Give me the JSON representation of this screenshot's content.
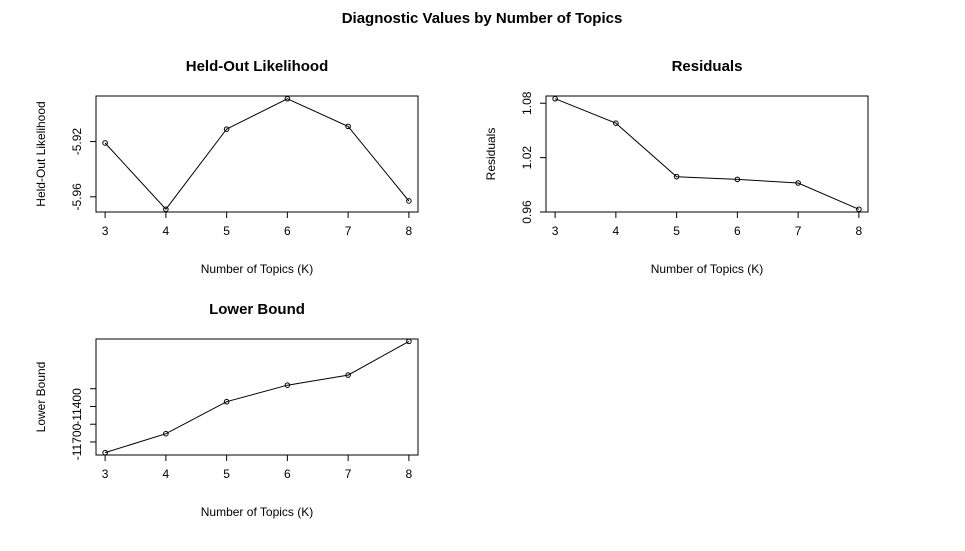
{
  "title": "Diagnostic Values by Number of Topics",
  "chart_data": [
    {
      "type": "line",
      "title": "Held-Out Likelihood",
      "xlabel": "Number of Topics (K)",
      "ylabel": "Held-Out Likelihood",
      "x": [
        3,
        4,
        5,
        6,
        7,
        8
      ],
      "values": [
        -5.921,
        -5.969,
        -5.911,
        -5.889,
        -5.909,
        -5.963
      ],
      "xlim": [
        2.85,
        8.15
      ],
      "ylim": [
        -5.971,
        -5.887
      ],
      "xticks": [
        3,
        4,
        5,
        6,
        7,
        8
      ],
      "yticks": [
        -5.96,
        -5.92
      ],
      "ytick_labels": [
        "-5.96",
        "-5.92"
      ],
      "grid": false
    },
    {
      "type": "line",
      "title": "Residuals",
      "xlabel": "Number of Topics (K)",
      "ylabel": "Residuals",
      "x": [
        3,
        4,
        5,
        6,
        7,
        8
      ],
      "values": [
        1.085,
        1.058,
        0.999,
        0.996,
        0.992,
        0.963
      ],
      "xlim": [
        2.85,
        8.15
      ],
      "ylim": [
        0.96,
        1.088
      ],
      "xticks": [
        3,
        4,
        5,
        6,
        7,
        8
      ],
      "yticks": [
        0.96,
        1.02,
        1.08
      ],
      "ytick_labels": [
        "0.96",
        "1.02",
        "1.08"
      ],
      "grid": false
    },
    {
      "type": "line",
      "title": "Lower Bound",
      "xlabel": "Number of Topics (K)",
      "ylabel": "Lower Bound",
      "x": [
        3,
        4,
        5,
        6,
        7,
        8
      ],
      "values": [
        -11790,
        -11630,
        -11360,
        -11220,
        -11135,
        -10850
      ],
      "xlim": [
        2.85,
        8.15
      ],
      "ylim": [
        -11810,
        -10830
      ],
      "xticks": [
        3,
        4,
        5,
        6,
        7,
        8
      ],
      "yticks": [
        -11700,
        -11400
      ],
      "ytick_labels": [
        "-11700",
        "-11400"
      ],
      "extra_ytick_marks": [
        -11550,
        -11250
      ],
      "grid": false
    }
  ]
}
